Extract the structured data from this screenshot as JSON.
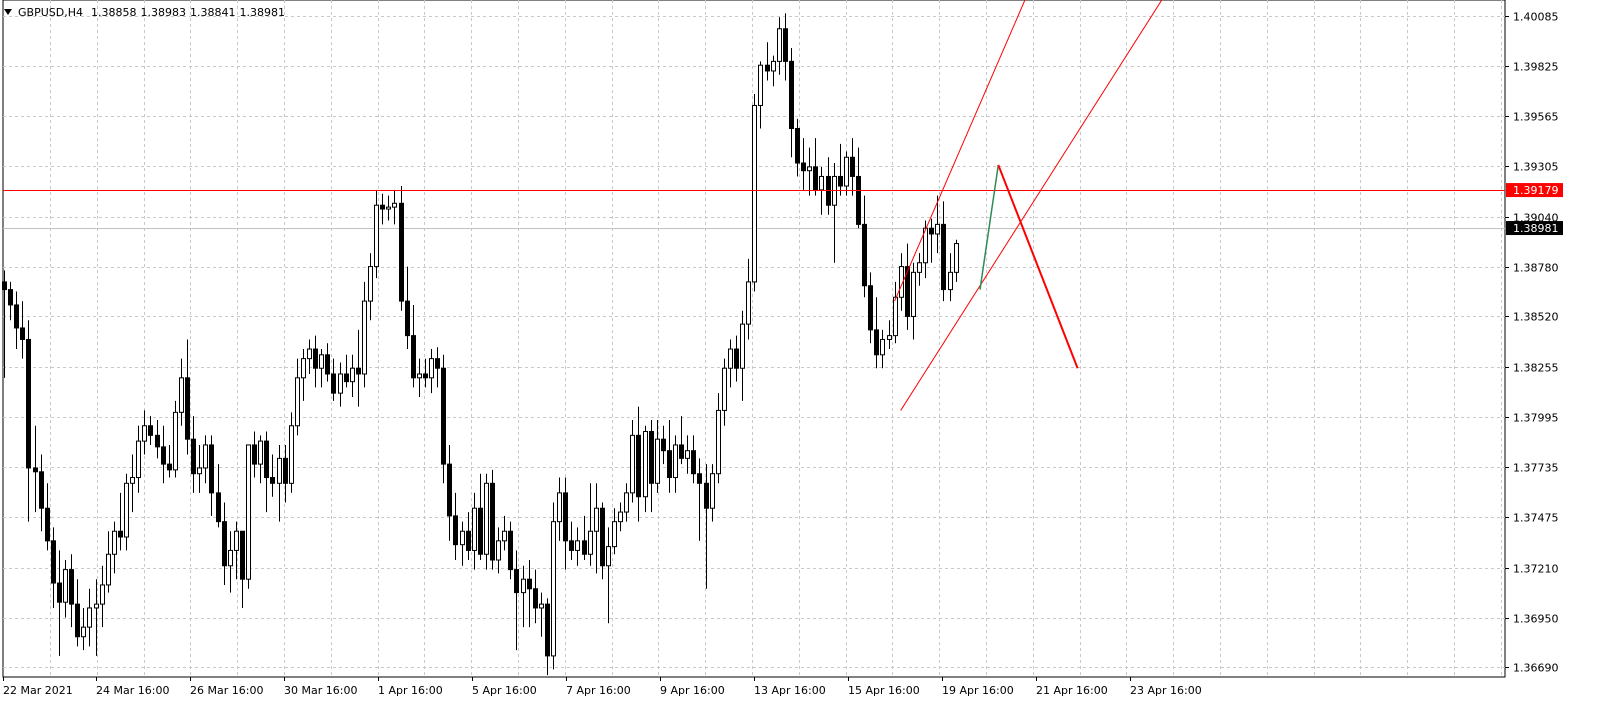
{
  "header": {
    "symbol_tf": "GBPUSD,H4",
    "open": "1.38858",
    "high": "1.38983",
    "low": "1.38841",
    "close": "1.38981"
  },
  "chart_data": {
    "type": "candlestick",
    "symbol": "GBPUSD",
    "timeframe": "H4",
    "grid": true,
    "ylim": [
      1.3664,
      1.4017
    ],
    "y_ticks": [
      "1.40085",
      "1.39825",
      "1.39565",
      "1.39305",
      "1.39040",
      "1.38780",
      "1.38520",
      "1.38255",
      "1.37995",
      "1.37735",
      "1.37475",
      "1.37210",
      "1.36950",
      "1.36690"
    ],
    "x_ticks": [
      "22 Mar 2021",
      "24 Mar 16:00",
      "26 Mar 16:00",
      "30 Mar 16:00",
      "1 Apr 16:00",
      "5 Apr 16:00",
      "7 Apr 16:00",
      "9 Apr 16:00",
      "13 Apr 16:00",
      "15 Apr 16:00",
      "19 Apr 16:00",
      "21 Apr 16:00",
      "23 Apr 16:00"
    ],
    "current_price": "1.38981",
    "level_price": "1.39179",
    "colors": {
      "up_body": "#ffffff",
      "down_body": "#000000",
      "wick": "#000000",
      "grid": "#c8c8c8",
      "level_line": "#ff0000",
      "channel": "#ff0000",
      "green_leg": "#2e8b57",
      "red_leg": "#ff0000",
      "current_line": "#c0c0c0",
      "current_label_bg": "#000000",
      "level_label_bg": "#ff0000"
    },
    "candles": [
      {
        "o": 1.387,
        "h": 1.3876,
        "l": 1.382,
        "c": 1.3866
      },
      {
        "o": 1.3866,
        "h": 1.387,
        "l": 1.385,
        "c": 1.3858
      },
      {
        "o": 1.3858,
        "h": 1.3865,
        "l": 1.3835,
        "c": 1.3846
      },
      {
        "o": 1.3846,
        "h": 1.386,
        "l": 1.383,
        "c": 1.384
      },
      {
        "o": 1.384,
        "h": 1.385,
        "l": 1.3745,
        "c": 1.3773
      },
      {
        "o": 1.3773,
        "h": 1.3795,
        "l": 1.375,
        "c": 1.3771
      },
      {
        "o": 1.3771,
        "h": 1.378,
        "l": 1.374,
        "c": 1.3752
      },
      {
        "o": 1.3752,
        "h": 1.3765,
        "l": 1.373,
        "c": 1.3735
      },
      {
        "o": 1.3735,
        "h": 1.3742,
        "l": 1.37,
        "c": 1.3713
      },
      {
        "o": 1.3713,
        "h": 1.373,
        "l": 1.3675,
        "c": 1.3703
      },
      {
        "o": 1.3703,
        "h": 1.3725,
        "l": 1.3695,
        "c": 1.372
      },
      {
        "o": 1.372,
        "h": 1.3728,
        "l": 1.369,
        "c": 1.3702
      },
      {
        "o": 1.3702,
        "h": 1.3715,
        "l": 1.368,
        "c": 1.3685
      },
      {
        "o": 1.3685,
        "h": 1.37,
        "l": 1.3678,
        "c": 1.369
      },
      {
        "o": 1.369,
        "h": 1.371,
        "l": 1.368,
        "c": 1.37
      },
      {
        "o": 1.37,
        "h": 1.3715,
        "l": 1.3675,
        "c": 1.3702
      },
      {
        "o": 1.3702,
        "h": 1.3722,
        "l": 1.369,
        "c": 1.3712
      },
      {
        "o": 1.3712,
        "h": 1.374,
        "l": 1.3708,
        "c": 1.3728
      },
      {
        "o": 1.3728,
        "h": 1.3745,
        "l": 1.3718,
        "c": 1.374
      },
      {
        "o": 1.374,
        "h": 1.376,
        "l": 1.373,
        "c": 1.3737
      },
      {
        "o": 1.3737,
        "h": 1.377,
        "l": 1.373,
        "c": 1.3765
      },
      {
        "o": 1.3765,
        "h": 1.378,
        "l": 1.375,
        "c": 1.3768
      },
      {
        "o": 1.3768,
        "h": 1.3795,
        "l": 1.376,
        "c": 1.3787
      },
      {
        "o": 1.3787,
        "h": 1.3803,
        "l": 1.378,
        "c": 1.3795
      },
      {
        "o": 1.3795,
        "h": 1.38,
        "l": 1.3785,
        "c": 1.379
      },
      {
        "o": 1.379,
        "h": 1.3798,
        "l": 1.3778,
        "c": 1.3784
      },
      {
        "o": 1.3784,
        "h": 1.3795,
        "l": 1.3765,
        "c": 1.3775
      },
      {
        "o": 1.3775,
        "h": 1.3785,
        "l": 1.3768,
        "c": 1.3772
      },
      {
        "o": 1.3772,
        "h": 1.3808,
        "l": 1.3768,
        "c": 1.3802
      },
      {
        "o": 1.3802,
        "h": 1.383,
        "l": 1.3795,
        "c": 1.382
      },
      {
        "o": 1.382,
        "h": 1.384,
        "l": 1.378,
        "c": 1.3788
      },
      {
        "o": 1.3788,
        "h": 1.38,
        "l": 1.376,
        "c": 1.377
      },
      {
        "o": 1.377,
        "h": 1.3785,
        "l": 1.376,
        "c": 1.3773
      },
      {
        "o": 1.3773,
        "h": 1.379,
        "l": 1.3765,
        "c": 1.3785
      },
      {
        "o": 1.3785,
        "h": 1.379,
        "l": 1.3748,
        "c": 1.376
      },
      {
        "o": 1.376,
        "h": 1.3775,
        "l": 1.3742,
        "c": 1.3745
      },
      {
        "o": 1.3745,
        "h": 1.3755,
        "l": 1.3712,
        "c": 1.3722
      },
      {
        "o": 1.3722,
        "h": 1.374,
        "l": 1.3708,
        "c": 1.373
      },
      {
        "o": 1.373,
        "h": 1.3745,
        "l": 1.3715,
        "c": 1.374
      },
      {
        "o": 1.374,
        "h": 1.374,
        "l": 1.37,
        "c": 1.3715
      },
      {
        "o": 1.3715,
        "h": 1.3785,
        "l": 1.371,
        "c": 1.3785
      },
      {
        "o": 1.3785,
        "h": 1.3792,
        "l": 1.3768,
        "c": 1.3775
      },
      {
        "o": 1.3775,
        "h": 1.379,
        "l": 1.3765,
        "c": 1.3787
      },
      {
        "o": 1.3787,
        "h": 1.3792,
        "l": 1.375,
        "c": 1.3768
      },
      {
        "o": 1.3768,
        "h": 1.378,
        "l": 1.3758,
        "c": 1.3765
      },
      {
        "o": 1.3765,
        "h": 1.3785,
        "l": 1.3745,
        "c": 1.3778
      },
      {
        "o": 1.3778,
        "h": 1.3785,
        "l": 1.3755,
        "c": 1.3765
      },
      {
        "o": 1.3765,
        "h": 1.3802,
        "l": 1.376,
        "c": 1.3795
      },
      {
        "o": 1.3795,
        "h": 1.383,
        "l": 1.379,
        "c": 1.382
      },
      {
        "o": 1.382,
        "h": 1.3835,
        "l": 1.3808,
        "c": 1.383
      },
      {
        "o": 1.383,
        "h": 1.384,
        "l": 1.3822,
        "c": 1.3835
      },
      {
        "o": 1.3835,
        "h": 1.3842,
        "l": 1.3815,
        "c": 1.3825
      },
      {
        "o": 1.3825,
        "h": 1.3835,
        "l": 1.3815,
        "c": 1.3832
      },
      {
        "o": 1.3832,
        "h": 1.3838,
        "l": 1.3818,
        "c": 1.3822
      },
      {
        "o": 1.3822,
        "h": 1.383,
        "l": 1.3808,
        "c": 1.3812
      },
      {
        "o": 1.3812,
        "h": 1.3828,
        "l": 1.3805,
        "c": 1.3822
      },
      {
        "o": 1.3822,
        "h": 1.3832,
        "l": 1.3815,
        "c": 1.3818
      },
      {
        "o": 1.3818,
        "h": 1.3832,
        "l": 1.381,
        "c": 1.3825
      },
      {
        "o": 1.3825,
        "h": 1.3845,
        "l": 1.3805,
        "c": 1.3822
      },
      {
        "o": 1.3822,
        "h": 1.387,
        "l": 1.3815,
        "c": 1.386
      },
      {
        "o": 1.386,
        "h": 1.3885,
        "l": 1.385,
        "c": 1.3878
      },
      {
        "o": 1.3878,
        "h": 1.3918,
        "l": 1.3872,
        "c": 1.391
      },
      {
        "o": 1.391,
        "h": 1.3916,
        "l": 1.39,
        "c": 1.3908
      },
      {
        "o": 1.3908,
        "h": 1.3915,
        "l": 1.3902,
        "c": 1.3909
      },
      {
        "o": 1.3909,
        "h": 1.3918,
        "l": 1.39,
        "c": 1.3911
      },
      {
        "o": 1.3911,
        "h": 1.392,
        "l": 1.3855,
        "c": 1.386
      },
      {
        "o": 1.386,
        "h": 1.3878,
        "l": 1.3835,
        "c": 1.3842
      },
      {
        "o": 1.3842,
        "h": 1.3858,
        "l": 1.3815,
        "c": 1.382
      },
      {
        "o": 1.382,
        "h": 1.383,
        "l": 1.381,
        "c": 1.3822
      },
      {
        "o": 1.3822,
        "h": 1.383,
        "l": 1.3815,
        "c": 1.382
      },
      {
        "o": 1.382,
        "h": 1.3835,
        "l": 1.3812,
        "c": 1.383
      },
      {
        "o": 1.383,
        "h": 1.3836,
        "l": 1.3815,
        "c": 1.3825
      },
      {
        "o": 1.3825,
        "h": 1.3832,
        "l": 1.3765,
        "c": 1.3775
      },
      {
        "o": 1.3775,
        "h": 1.3785,
        "l": 1.3735,
        "c": 1.3748
      },
      {
        "o": 1.3748,
        "h": 1.376,
        "l": 1.3725,
        "c": 1.3733
      },
      {
        "o": 1.3733,
        "h": 1.3745,
        "l": 1.3722,
        "c": 1.374
      },
      {
        "o": 1.374,
        "h": 1.375,
        "l": 1.3725,
        "c": 1.373
      },
      {
        "o": 1.373,
        "h": 1.376,
        "l": 1.372,
        "c": 1.3752
      },
      {
        "o": 1.3752,
        "h": 1.377,
        "l": 1.3725,
        "c": 1.3728
      },
      {
        "o": 1.3728,
        "h": 1.377,
        "l": 1.372,
        "c": 1.3765
      },
      {
        "o": 1.3765,
        "h": 1.3772,
        "l": 1.372,
        "c": 1.3725
      },
      {
        "o": 1.3725,
        "h": 1.3742,
        "l": 1.3718,
        "c": 1.3735
      },
      {
        "o": 1.3735,
        "h": 1.3748,
        "l": 1.373,
        "c": 1.374
      },
      {
        "o": 1.374,
        "h": 1.3745,
        "l": 1.3715,
        "c": 1.372
      },
      {
        "o": 1.372,
        "h": 1.373,
        "l": 1.3678,
        "c": 1.3708
      },
      {
        "o": 1.3708,
        "h": 1.3722,
        "l": 1.369,
        "c": 1.3715
      },
      {
        "o": 1.3715,
        "h": 1.3725,
        "l": 1.369,
        "c": 1.371
      },
      {
        "o": 1.371,
        "h": 1.372,
        "l": 1.3692,
        "c": 1.37
      },
      {
        "o": 1.37,
        "h": 1.3708,
        "l": 1.3685,
        "c": 1.3702
      },
      {
        "o": 1.3702,
        "h": 1.3705,
        "l": 1.3665,
        "c": 1.3675
      },
      {
        "o": 1.3675,
        "h": 1.3755,
        "l": 1.3668,
        "c": 1.3745
      },
      {
        "o": 1.3745,
        "h": 1.3768,
        "l": 1.3735,
        "c": 1.376
      },
      {
        "o": 1.376,
        "h": 1.3768,
        "l": 1.372,
        "c": 1.3735
      },
      {
        "o": 1.3735,
        "h": 1.3745,
        "l": 1.3725,
        "c": 1.373
      },
      {
        "o": 1.373,
        "h": 1.3742,
        "l": 1.3722,
        "c": 1.3735
      },
      {
        "o": 1.3735,
        "h": 1.3748,
        "l": 1.3725,
        "c": 1.3728
      },
      {
        "o": 1.3728,
        "h": 1.3765,
        "l": 1.3722,
        "c": 1.374
      },
      {
        "o": 1.374,
        "h": 1.3765,
        "l": 1.3718,
        "c": 1.3752
      },
      {
        "o": 1.3752,
        "h": 1.3755,
        "l": 1.3715,
        "c": 1.3722
      },
      {
        "o": 1.3722,
        "h": 1.3742,
        "l": 1.3692,
        "c": 1.3732
      },
      {
        "o": 1.3732,
        "h": 1.3752,
        "l": 1.3728,
        "c": 1.3745
      },
      {
        "o": 1.3745,
        "h": 1.3755,
        "l": 1.374,
        "c": 1.375
      },
      {
        "o": 1.375,
        "h": 1.3765,
        "l": 1.3745,
        "c": 1.376
      },
      {
        "o": 1.376,
        "h": 1.3798,
        "l": 1.3755,
        "c": 1.379
      },
      {
        "o": 1.379,
        "h": 1.3805,
        "l": 1.3745,
        "c": 1.3758
      },
      {
        "o": 1.3758,
        "h": 1.3795,
        "l": 1.375,
        "c": 1.3792
      },
      {
        "o": 1.3792,
        "h": 1.3798,
        "l": 1.375,
        "c": 1.3765
      },
      {
        "o": 1.3765,
        "h": 1.3798,
        "l": 1.376,
        "c": 1.3788
      },
      {
        "o": 1.3788,
        "h": 1.3795,
        "l": 1.3775,
        "c": 1.3782
      },
      {
        "o": 1.3782,
        "h": 1.3798,
        "l": 1.376,
        "c": 1.3768
      },
      {
        "o": 1.3768,
        "h": 1.379,
        "l": 1.376,
        "c": 1.3785
      },
      {
        "o": 1.3785,
        "h": 1.38,
        "l": 1.3775,
        "c": 1.3778
      },
      {
        "o": 1.3778,
        "h": 1.379,
        "l": 1.377,
        "c": 1.3782
      },
      {
        "o": 1.3782,
        "h": 1.379,
        "l": 1.3765,
        "c": 1.377
      },
      {
        "o": 1.377,
        "h": 1.3778,
        "l": 1.3735,
        "c": 1.3765
      },
      {
        "o": 1.3765,
        "h": 1.3775,
        "l": 1.371,
        "c": 1.3752
      },
      {
        "o": 1.3752,
        "h": 1.3775,
        "l": 1.3745,
        "c": 1.377
      },
      {
        "o": 1.377,
        "h": 1.3812,
        "l": 1.3765,
        "c": 1.3803
      },
      {
        "o": 1.3803,
        "h": 1.383,
        "l": 1.3795,
        "c": 1.3825
      },
      {
        "o": 1.3825,
        "h": 1.384,
        "l": 1.3815,
        "c": 1.3835
      },
      {
        "o": 1.3835,
        "h": 1.3842,
        "l": 1.3818,
        "c": 1.3825
      },
      {
        "o": 1.3825,
        "h": 1.3855,
        "l": 1.3808,
        "c": 1.3848
      },
      {
        "o": 1.3848,
        "h": 1.3882,
        "l": 1.384,
        "c": 1.387
      },
      {
        "o": 1.387,
        "h": 1.3968,
        "l": 1.3865,
        "c": 1.3962
      },
      {
        "o": 1.3962,
        "h": 1.3985,
        "l": 1.395,
        "c": 1.3983
      },
      {
        "o": 1.3983,
        "h": 1.3995,
        "l": 1.3975,
        "c": 1.398
      },
      {
        "o": 1.398,
        "h": 1.3988,
        "l": 1.3972,
        "c": 1.3985
      },
      {
        "o": 1.3985,
        "h": 1.4008,
        "l": 1.3978,
        "c": 1.4002
      },
      {
        "o": 1.4002,
        "h": 1.401,
        "l": 1.3975,
        "c": 1.3985
      },
      {
        "o": 1.3985,
        "h": 1.3992,
        "l": 1.3935,
        "c": 1.395
      },
      {
        "o": 1.395,
        "h": 1.3955,
        "l": 1.3925,
        "c": 1.3932
      },
      {
        "o": 1.3932,
        "h": 1.3945,
        "l": 1.3918,
        "c": 1.3928
      },
      {
        "o": 1.3928,
        "h": 1.394,
        "l": 1.3915,
        "c": 1.393
      },
      {
        "o": 1.393,
        "h": 1.3945,
        "l": 1.3915,
        "c": 1.3918
      },
      {
        "o": 1.3918,
        "h": 1.393,
        "l": 1.3905,
        "c": 1.3925
      },
      {
        "o": 1.3925,
        "h": 1.3935,
        "l": 1.3905,
        "c": 1.391
      },
      {
        "o": 1.391,
        "h": 1.3932,
        "l": 1.388,
        "c": 1.3925
      },
      {
        "o": 1.3925,
        "h": 1.3942,
        "l": 1.3915,
        "c": 1.392
      },
      {
        "o": 1.392,
        "h": 1.3938,
        "l": 1.3915,
        "c": 1.3935
      },
      {
        "o": 1.3935,
        "h": 1.3945,
        "l": 1.3915,
        "c": 1.3925
      },
      {
        "o": 1.3925,
        "h": 1.394,
        "l": 1.3898,
        "c": 1.39
      },
      {
        "o": 1.39,
        "h": 1.3915,
        "l": 1.3862,
        "c": 1.3868
      },
      {
        "o": 1.3868,
        "h": 1.3875,
        "l": 1.3838,
        "c": 1.3845
      },
      {
        "o": 1.3845,
        "h": 1.3862,
        "l": 1.3825,
        "c": 1.3832
      },
      {
        "o": 1.3832,
        "h": 1.3845,
        "l": 1.3825,
        "c": 1.384
      },
      {
        "o": 1.384,
        "h": 1.385,
        "l": 1.3835,
        "c": 1.3842
      },
      {
        "o": 1.3842,
        "h": 1.387,
        "l": 1.3838,
        "c": 1.3862
      },
      {
        "o": 1.3862,
        "h": 1.3885,
        "l": 1.3855,
        "c": 1.3878
      },
      {
        "o": 1.3878,
        "h": 1.389,
        "l": 1.3845,
        "c": 1.3852
      },
      {
        "o": 1.3852,
        "h": 1.388,
        "l": 1.384,
        "c": 1.3875
      },
      {
        "o": 1.3875,
        "h": 1.3885,
        "l": 1.3868,
        "c": 1.388
      },
      {
        "o": 1.388,
        "h": 1.3902,
        "l": 1.3872,
        "c": 1.3898
      },
      {
        "o": 1.3898,
        "h": 1.3903,
        "l": 1.388,
        "c": 1.3895
      },
      {
        "o": 1.3895,
        "h": 1.3915,
        "l": 1.3885,
        "c": 1.39
      },
      {
        "o": 1.39,
        "h": 1.3912,
        "l": 1.386,
        "c": 1.3866
      },
      {
        "o": 1.3866,
        "h": 1.3885,
        "l": 1.386,
        "c": 1.3875
      },
      {
        "o": 1.3875,
        "h": 1.3892,
        "l": 1.387,
        "c": 1.389
      }
    ],
    "overlays": {
      "horizontal_level": 1.39179,
      "channel_upper": {
        "start_index": 146,
        "start_price": 1.386,
        "end_index": 192,
        "end_price": 1.4198
      },
      "channel_lower": {
        "start_index": 147,
        "start_price": 1.3803,
        "end_index": 203,
        "end_price": 1.4083
      },
      "green_leg": {
        "start_index": 160,
        "start_price": 1.3866,
        "end_index": 163,
        "end_price": 1.3931
      },
      "red_leg": {
        "start_index": 163,
        "start_price": 1.3931,
        "end_index": 176,
        "end_price": 1.3825
      }
    }
  }
}
